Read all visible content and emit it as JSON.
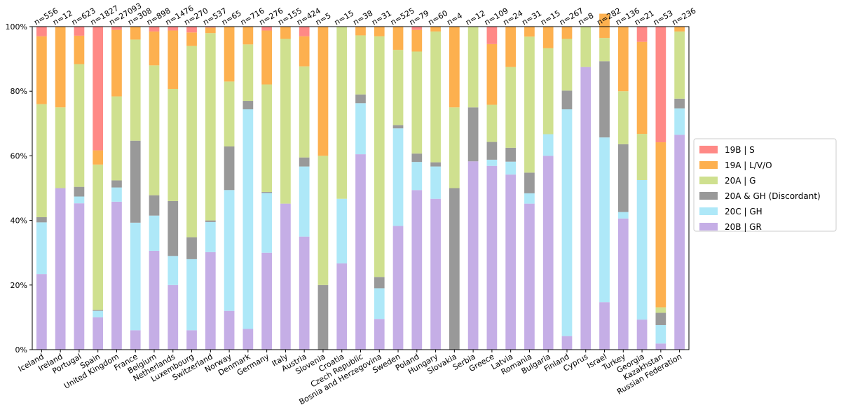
{
  "chart_data": {
    "type": "bar",
    "stacked": true,
    "percent": true,
    "ylim": [
      0,
      100
    ],
    "yticks": [
      "0%",
      "20%",
      "40%",
      "60%",
      "80%",
      "100%"
    ],
    "ytick_values": [
      0,
      20,
      40,
      60,
      80,
      100
    ],
    "categories": [
      "Iceland",
      "Ireland",
      "Portugal",
      "Spain",
      "United Kingdom",
      "France",
      "Belgium",
      "Netherlands",
      "Luxembourg",
      "Switzerland",
      "Norway",
      "Denmark",
      "Germany",
      "Italy",
      "Austria",
      "Slovenia",
      "Croatia",
      "Czech Republic",
      "Bosnia and Herzegovina",
      "Sweden",
      "Poland",
      "Hungary",
      "Slovakia",
      "Serbia",
      "Greece",
      "Latvia",
      "Romania",
      "Bulgaria",
      "Finland",
      "Cyprus",
      "Israel",
      "Turkey",
      "Georgia",
      "Kazakhstan",
      "Russian Federation"
    ],
    "n_labels": [
      "n=556",
      "n=12",
      "n=623",
      "n=1827",
      "n=27093",
      "n=308",
      "n=898",
      "n=1476",
      "n=270",
      "n=537",
      "n=65",
      "n=716",
      "n=276",
      "n=155",
      "n=424",
      "n=5",
      "n=15",
      "n=38",
      "n=31",
      "n=525",
      "n=79",
      "n=60",
      "n=4",
      "n=12",
      "n=109",
      "n=24",
      "n=31",
      "n=15",
      "n=267",
      "n=8",
      "n=282",
      "n=136",
      "n=21",
      "n=53",
      "n=236"
    ],
    "series": [
      {
        "name": "20B | GR",
        "color": "#c5aee6",
        "values": [
          23.4,
          50,
          45.3,
          10,
          45.8,
          6,
          30.6,
          20,
          6,
          30.2,
          12,
          6.4,
          30,
          45.2,
          35,
          0,
          26.7,
          60.5,
          9.5,
          38.3,
          49.4,
          46.7,
          0,
          58.3,
          56.9,
          54.2,
          45.2,
          60,
          4.2,
          87.5,
          14.7,
          40.6,
          9.3,
          1.9,
          66.5
        ]
      },
      {
        "name": "20C | GH",
        "color": "#aee8f8",
        "values": [
          16,
          0,
          2.1,
          2,
          4.4,
          33.3,
          10.9,
          9,
          22,
          9.3,
          37.4,
          68,
          18.5,
          0,
          21.7,
          0,
          20,
          15.8,
          9.5,
          30.2,
          8.7,
          10,
          0,
          0,
          1.9,
          4,
          3.2,
          6.7,
          70.2,
          0,
          51,
          2,
          43.2,
          5.7,
          8.2
        ]
      },
      {
        "name": "20A & GH (Discordant)",
        "color": "#999999",
        "values": [
          1.6,
          0,
          3,
          0.3,
          2.2,
          25.4,
          6.3,
          17,
          6.8,
          0.5,
          13.5,
          2.6,
          0.3,
          0,
          2.8,
          20,
          0,
          2.7,
          3.5,
          1,
          2.6,
          1.3,
          50,
          16.7,
          5.5,
          4.3,
          6.4,
          0,
          5.8,
          0,
          23.6,
          21,
          0,
          3.8,
          3
        ]
      },
      {
        "name": "20A | G",
        "color": "#cfe08f",
        "values": [
          35,
          25,
          38,
          45,
          26,
          31.3,
          40.2,
          34.7,
          59.2,
          58,
          20.1,
          17.5,
          33.3,
          51,
          28.2,
          40,
          53.3,
          18.3,
          74.5,
          23.3,
          31.6,
          40.5,
          25,
          25,
          11.5,
          25,
          42.1,
          26.6,
          16,
          12.5,
          7.2,
          16.4,
          14.3,
          1.7,
          20.8
        ]
      },
      {
        "name": "19A | L/V/O",
        "color": "#fdb04f",
        "values": [
          21,
          25,
          8.8,
          4.4,
          20.6,
          4,
          10.5,
          18.1,
          4.2,
          1.7,
          17,
          5.5,
          16.7,
          3.8,
          9.3,
          40,
          0,
          2.7,
          3,
          7.2,
          6.7,
          1.5,
          25,
          0,
          18.8,
          12.5,
          3.1,
          6.7,
          3.8,
          0,
          7.5,
          20,
          28.5,
          51.1,
          1.5
        ]
      },
      {
        "name": "19B | S",
        "color": "#ff8986",
        "values": [
          3,
          0,
          2.8,
          38.3,
          1,
          0,
          1.5,
          1.2,
          1.8,
          0.3,
          0,
          0,
          1.2,
          0,
          3,
          0,
          0,
          0,
          0,
          0,
          1,
          0,
          0,
          0,
          5.4,
          0,
          0,
          0,
          0,
          0,
          0,
          0,
          4.7,
          35.8,
          0
        ]
      }
    ],
    "legend_order": [
      "19B | S",
      "19A | L/V/O",
      "20A | G",
      "20A & GH (Discordant)",
      "20C | GH",
      "20B | GR"
    ],
    "legend_position": "right"
  }
}
